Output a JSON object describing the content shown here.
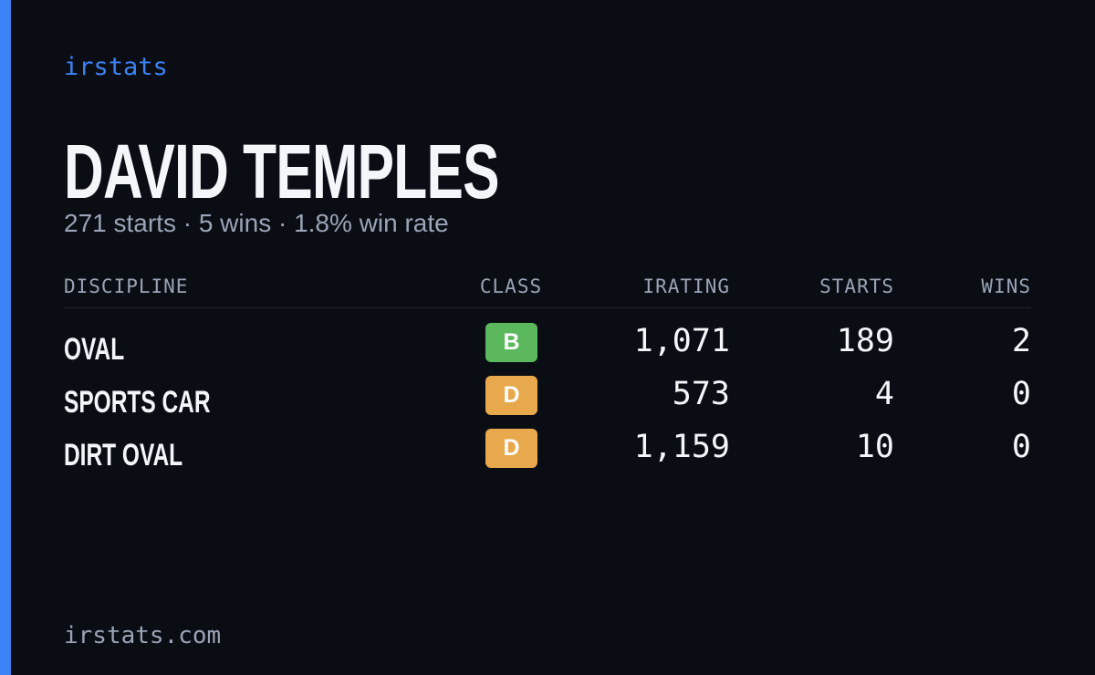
{
  "brand": "irstats",
  "driver": {
    "name": "DAVID TEMPLES",
    "summary": "271 starts · 5 wins · 1.8% win rate"
  },
  "table": {
    "headers": [
      "DISCIPLINE",
      "CLASS",
      "IRATING",
      "STARTS",
      "WINS"
    ],
    "rows": [
      {
        "discipline": "OVAL",
        "class": "B",
        "class_color": "#5cb85c",
        "irating": "1,071",
        "starts": "189",
        "wins": "2"
      },
      {
        "discipline": "SPORTS CAR",
        "class": "D",
        "class_color": "#e8a84c",
        "irating": "573",
        "starts": "4",
        "wins": "0"
      },
      {
        "discipline": "DIRT OVAL",
        "class": "D",
        "class_color": "#e8a84c",
        "irating": "1,159",
        "starts": "10",
        "wins": "0"
      }
    ]
  },
  "footer": "irstats.com"
}
